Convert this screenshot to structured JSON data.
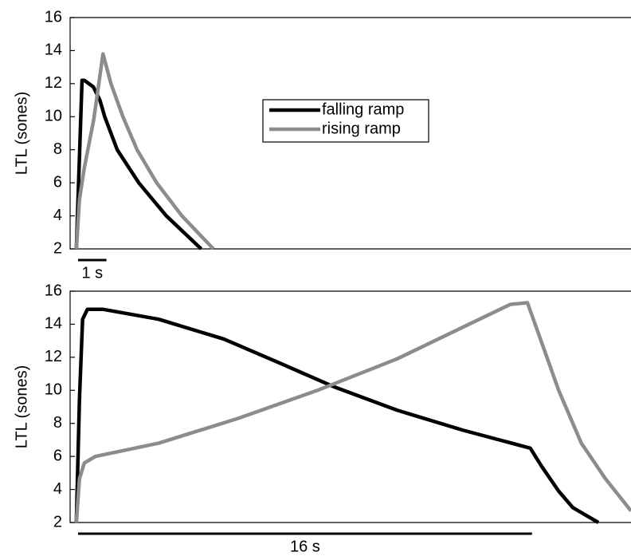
{
  "chart_data": [
    {
      "type": "line",
      "ylabel": "LTL (sones)",
      "xlim": [
        -0.22,
        19.55
      ],
      "ylim": [
        2,
        16
      ],
      "yticks": [
        2,
        4,
        6,
        8,
        10,
        12,
        14,
        16
      ],
      "legend": true,
      "scale_bar": {
        "label": "1 s",
        "length": 1
      },
      "series": [
        {
          "name": "falling ramp",
          "color": "#000000",
          "x": [
            0,
            0.2,
            0.28,
            0.6,
            0.83,
            1.0,
            1.44,
            2.2,
            3.17,
            4.4
          ],
          "values": [
            2,
            12.2,
            12.2,
            11.8,
            11.0,
            10,
            8,
            6,
            4,
            2
          ]
        },
        {
          "name": "rising ramp",
          "color": "#8c8c8c",
          "x": [
            0,
            0.11,
            0.28,
            0.61,
            0.94,
            1.22,
            1.64,
            2.14,
            2.83,
            3.72,
            4.83
          ],
          "values": [
            2,
            5.0,
            6.9,
            9.8,
            13.8,
            12,
            10,
            8,
            6,
            4,
            2
          ]
        }
      ]
    },
    {
      "type": "line",
      "ylabel": "LTL (sones)",
      "xlim": [
        -0.22,
        19.55
      ],
      "ylim": [
        2,
        16
      ],
      "yticks": [
        2,
        4,
        6,
        8,
        10,
        12,
        14,
        16
      ],
      "legend": false,
      "scale_bar": {
        "label": "16 s",
        "length": 16
      },
      "series": [
        {
          "color": "#000000",
          "x": [
            0,
            0.11,
            0.22,
            0.39,
            0.95,
            2.9,
            5.2,
            7.1,
            9.1,
            11.3,
            13.6,
            16.0,
            16.4,
            17.0,
            17.5,
            18.4
          ],
          "values": [
            2,
            9.5,
            14.3,
            14.9,
            14.9,
            14.3,
            13.1,
            11.7,
            10.2,
            8.8,
            7.6,
            6.5,
            5.4,
            3.9,
            2.9,
            2
          ]
        },
        {
          "color": "#8c8c8c",
          "x": [
            0,
            0.11,
            0.28,
            0.67,
            2.9,
            5.7,
            8.5,
            11.3,
            13.6,
            15.3,
            15.9,
            16.4,
            17.0,
            17.8,
            18.65,
            19.55
          ],
          "values": [
            2,
            4.65,
            5.6,
            6.0,
            6.8,
            8.3,
            10.0,
            11.9,
            13.8,
            15.2,
            15.3,
            12.9,
            10.0,
            6.8,
            4.65,
            2.7
          ]
        }
      ]
    }
  ]
}
